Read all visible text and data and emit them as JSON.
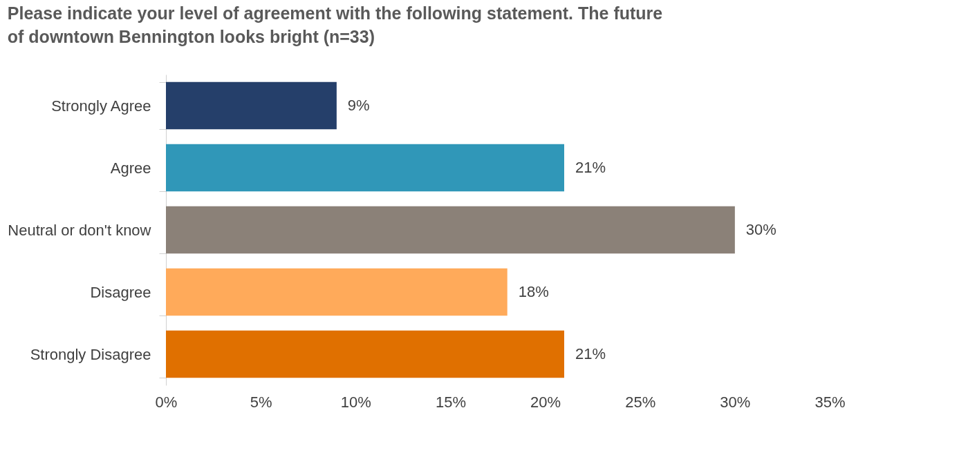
{
  "chart_data": {
    "type": "bar",
    "orientation": "horizontal",
    "title": "Please indicate your level of agreement with the following statement. The future of downtown Bennington looks bright (n=33)",
    "categories": [
      "Strongly Agree",
      "Agree",
      "Neutral or don't know",
      "Disagree",
      "Strongly Disagree"
    ],
    "values": [
      9,
      21,
      30,
      18,
      21
    ],
    "colors": [
      "#253f6a",
      "#3097b8",
      "#8b8178",
      "#ffaa5a",
      "#e07000"
    ],
    "value_labels": [
      "9%",
      "21%",
      "30%",
      "18%",
      "21%"
    ],
    "xlim": [
      0,
      35
    ],
    "xticks": [
      {
        "value": 0,
        "label": "0%"
      },
      {
        "value": 5,
        "label": "5%"
      },
      {
        "value": 10,
        "label": "10%"
      },
      {
        "value": 15,
        "label": "15%"
      },
      {
        "value": 20,
        "label": "20%"
      },
      {
        "value": 25,
        "label": "25%"
      },
      {
        "value": 30,
        "label": "30%"
      },
      {
        "value": 35,
        "label": "35%"
      }
    ],
    "grid": false
  }
}
